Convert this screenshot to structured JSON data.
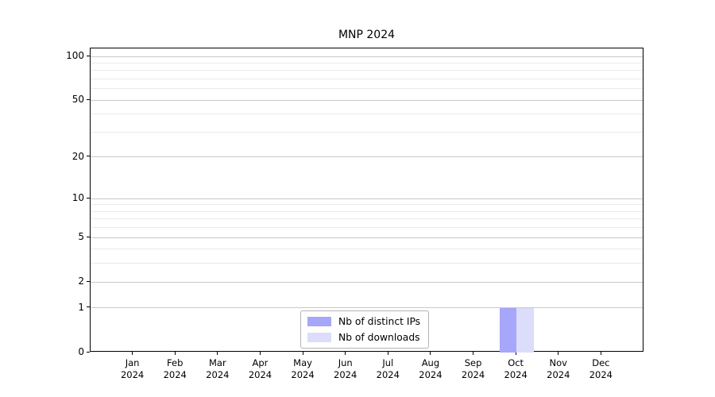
{
  "chart_data": {
    "type": "bar",
    "title": "MNP 2024",
    "categories": [
      "Jan 2024",
      "Feb 2024",
      "Mar 2024",
      "Apr 2024",
      "May 2024",
      "Jun 2024",
      "Jul 2024",
      "Aug 2024",
      "Sep 2024",
      "Oct 2024",
      "Nov 2024",
      "Dec 2024"
    ],
    "series": [
      {
        "name": "Nb of distinct IPs",
        "color": "#a6a6fa",
        "values": [
          0,
          0,
          0,
          0,
          0,
          0,
          0,
          0,
          0,
          1,
          0,
          0
        ]
      },
      {
        "name": "Nb of downloads",
        "color": "#dcdcfb",
        "values": [
          0,
          0,
          0,
          0,
          0,
          0,
          0,
          0,
          0,
          1,
          0,
          0
        ]
      }
    ],
    "xlabel": "",
    "ylabel": "",
    "yscale": "log1p",
    "ylim": [
      0,
      112
    ],
    "y_major_ticks": [
      0,
      1,
      2,
      5,
      10,
      20,
      50,
      100
    ],
    "y_minor_gridlines": [
      3,
      4,
      6,
      7,
      8,
      9,
      30,
      40,
      60,
      70,
      80,
      90
    ],
    "grid": "both",
    "legend": {
      "location": "lower center",
      "entries": [
        "Nb of distinct IPs",
        "Nb of downloads"
      ]
    },
    "colors": {
      "background": "#ffffff",
      "axis": "#000000",
      "text": "#000000",
      "major_grid": "#c9c9c9",
      "minor_grid": "#eaeaea",
      "legend_border": "#b3b3b3"
    }
  }
}
